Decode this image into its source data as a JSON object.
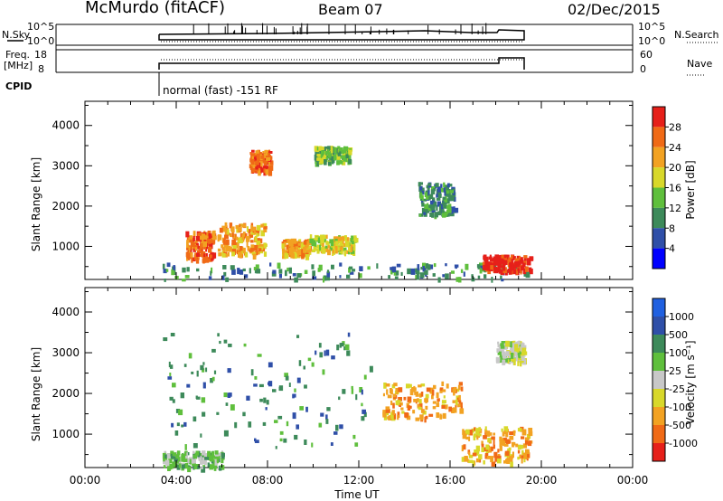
{
  "header": {
    "site": "McMurdo (fitACF)",
    "beam": "Beam 07",
    "date": "02/Dec/2015"
  },
  "top_panels": {
    "nsky_label": "N.Sky",
    "nsky_ticks": [
      "10^5",
      "10^0"
    ],
    "nsearch_label": "N.Search",
    "nsearch_ticks": [
      "10^5",
      "10^0"
    ],
    "freq_label": "Freq.",
    "freq_unit": "[MHz]",
    "freq_ticks": [
      "18",
      "8"
    ],
    "nave_label": "Nave",
    "nave_ticks": [
      "60",
      "0"
    ],
    "cpid_label": "CPID",
    "cpid_text": "normal (fast) -151 RF"
  },
  "colors": {
    "power": [
      "#0000ff",
      "#2f4fa8",
      "#3d8a5a",
      "#5fbf3c",
      "#d8d82a",
      "#f2a222",
      "#f06a16",
      "#e6201a"
    ],
    "velocity": [
      "#e6201a",
      "#f06a16",
      "#f2a222",
      "#d8d82a",
      "#c8c8c8",
      "#5fbf3c",
      "#3d8a5a",
      "#2f4fa8",
      "#2060e0"
    ]
  },
  "chart_data": [
    {
      "type": "heatmap",
      "title": "",
      "quantity": "Power",
      "colorbar_label": "Power [dB]",
      "colorbar_ticks": [
        "28",
        "24",
        "20",
        "16",
        "12",
        "8",
        "4"
      ],
      "ylabel": "Slant Range [km]",
      "yticks": [
        "4000",
        "3000",
        "2000",
        "1000"
      ],
      "ylim": [
        180,
        4600
      ],
      "xlabel": "",
      "xticks": [
        "00:00",
        "04:00",
        "08:00",
        "12:00",
        "16:00",
        "20:00",
        "00:00"
      ],
      "xlim_hours": [
        0,
        24
      ],
      "data_window_hours": [
        3.3,
        19.5
      ],
      "features": [
        {
          "t": [
            3.4,
            19.5
          ],
          "r": [
            200,
            600
          ],
          "level": 2
        },
        {
          "t": [
            4.4,
            5.6
          ],
          "r": [
            700,
            1400
          ],
          "level": 6
        },
        {
          "t": [
            5.8,
            7.9
          ],
          "r": [
            800,
            1600
          ],
          "level": 5
        },
        {
          "t": [
            7.2,
            8.1
          ],
          "r": [
            2900,
            3400
          ],
          "level": 6
        },
        {
          "t": [
            8.6,
            9.8
          ],
          "r": [
            800,
            1200
          ],
          "level": 5
        },
        {
          "t": [
            9.8,
            11.8
          ],
          "r": [
            900,
            1300
          ],
          "level": 4
        },
        {
          "t": [
            17.4,
            19.5
          ],
          "r": [
            400,
            800
          ],
          "level": 7
        },
        {
          "t": [
            10.0,
            11.6
          ],
          "r": [
            3100,
            3500
          ],
          "level": 3
        },
        {
          "t": [
            14.6,
            16.2
          ],
          "r": [
            1800,
            2600
          ],
          "level": 2
        }
      ]
    },
    {
      "type": "heatmap",
      "title": "",
      "quantity": "Velocity",
      "colorbar_label": "Velocity [m s⁻¹]",
      "colorbar_ticks": [
        "1000",
        "500",
        "100",
        "25",
        "-25",
        "-100",
        "-500",
        "-1000"
      ],
      "ylabel": "Slant Range [km]",
      "yticks": [
        "4000",
        "3000",
        "2000",
        "1000"
      ],
      "ylim": [
        180,
        4600
      ],
      "xlabel": "Time UT",
      "xticks": [
        "00:00",
        "04:00",
        "08:00",
        "12:00",
        "16:00",
        "20:00",
        "00:00"
      ],
      "xlim_hours": [
        0,
        24
      ],
      "data_window_hours": [
        3.3,
        19.5
      ],
      "features": [
        {
          "t": [
            3.4,
            12.5
          ],
          "r": [
            700,
            3500
          ],
          "sign": "positive",
          "level": 6
        },
        {
          "t": [
            3.4,
            6.0
          ],
          "r": [
            200,
            600
          ],
          "sign": "positive",
          "level": 5
        },
        {
          "t": [
            13.0,
            16.5
          ],
          "r": [
            1400,
            2300
          ],
          "sign": "negative",
          "level": 2
        },
        {
          "t": [
            16.5,
            19.5
          ],
          "r": [
            300,
            1200
          ],
          "sign": "negative",
          "level": 2
        },
        {
          "t": [
            18.0,
            19.2
          ],
          "r": [
            2800,
            3300
          ],
          "sign": "near-zero",
          "level": 4
        }
      ]
    }
  ]
}
